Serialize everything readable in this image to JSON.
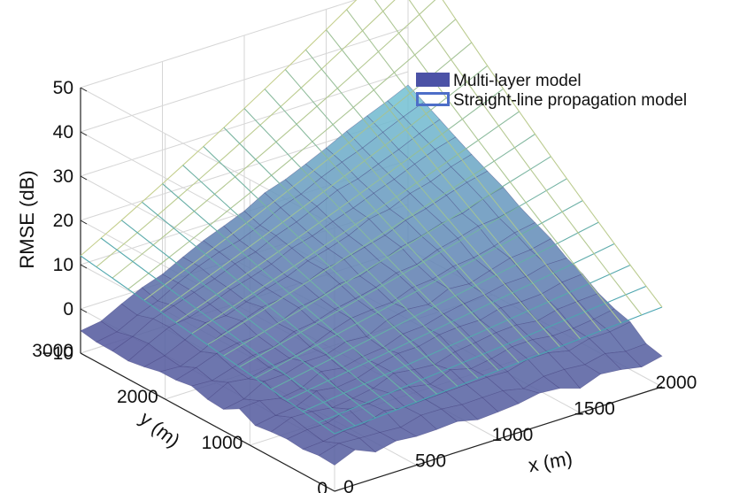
{
  "chart_data": {
    "type": "surface3d",
    "title": "",
    "zlabel": "RMSE (dB)",
    "xlabel": "x (m)",
    "ylabel": "y (m)",
    "x_ticks": [
      "0",
      "500",
      "1000",
      "1500",
      "2000"
    ],
    "y_ticks": [
      "0",
      "1000",
      "2000",
      "3000"
    ],
    "z_ticks": [
      "−10",
      "0",
      "10",
      "20",
      "30",
      "40",
      "50"
    ],
    "xlim": [
      0,
      2000
    ],
    "ylim": [
      0,
      3000
    ],
    "zlim": [
      -10,
      50
    ],
    "grid": true,
    "legend_position": "top-right",
    "series": [
      {
        "name": "Multi-layer model",
        "style": "filled-surface",
        "color": "#4a55a8",
        "rmse_at_corners": {
          "x0_y0": -3,
          "x2000_y0": -4,
          "x0_y3000": -6,
          "x2000_y3000": 27
        },
        "peak_rmse": 27
      },
      {
        "name": "Straight-line propagation model",
        "style": "mesh-surface",
        "color": "#5a6fc0",
        "rmse_at_corners": {
          "x0_y0": 3,
          "x2000_y0": 8,
          "x0_y3000": 12,
          "x2000_y3000": 52
        },
        "peak_rmse": 52
      }
    ]
  }
}
